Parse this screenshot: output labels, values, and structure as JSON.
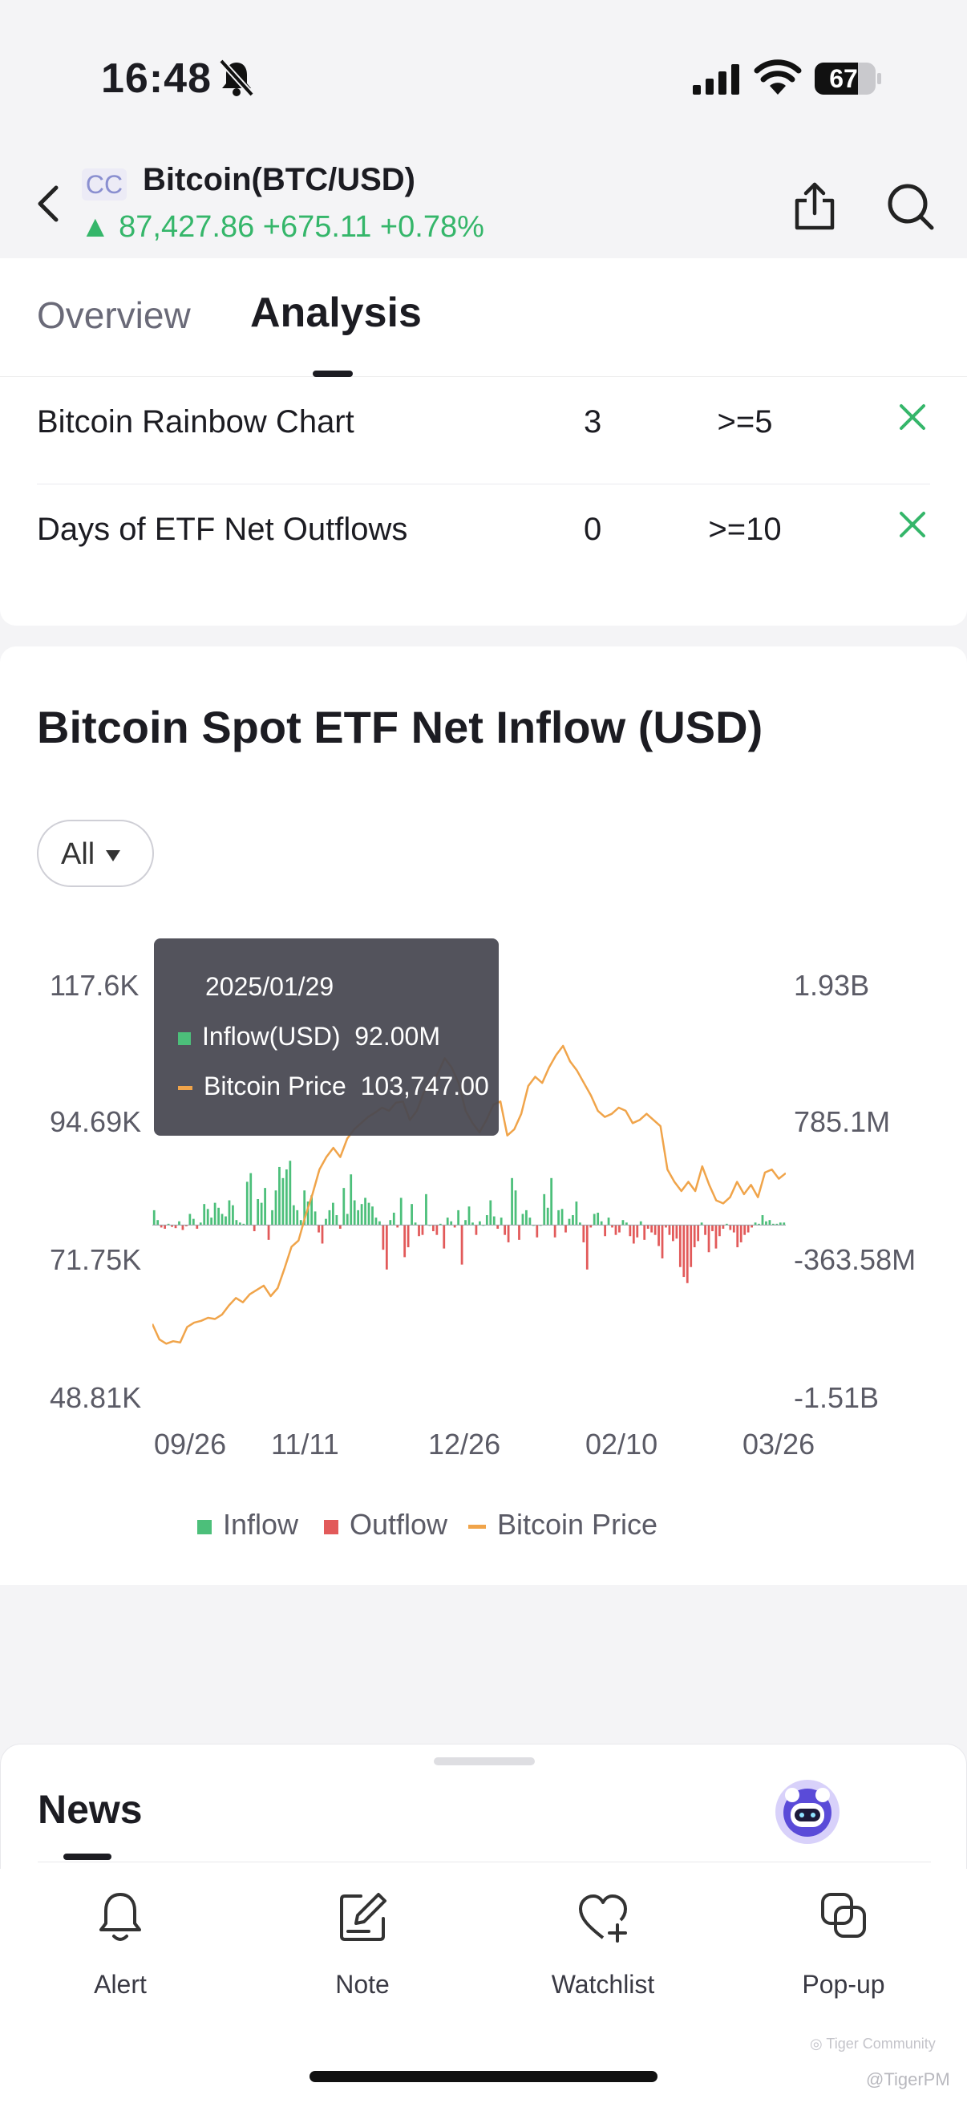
{
  "status_bar": {
    "time": "16:48",
    "battery": "67"
  },
  "header": {
    "badge": "CC",
    "title": "Bitcoin(BTC/USD)",
    "price_line": "▲ 87,427.86 +675.11 +0.78%",
    "colors": {
      "up": "#35b66a"
    }
  },
  "tabs": [
    {
      "label": "Overview"
    },
    {
      "label": "Analysis",
      "active": true
    }
  ],
  "indicators": [
    {
      "label": "Bitcoin Rainbow Chart",
      "value": "3",
      "threshold": ">=5",
      "status_icon": "close-icon"
    },
    {
      "label": "Days of ETF Net Outflows",
      "value": "0",
      "threshold": ">=10",
      "status_icon": "close-icon"
    }
  ],
  "chart_section": {
    "title": "Bitcoin Spot ETF Net Inflow (USD)",
    "range": "All"
  },
  "chart_data": {
    "type": "bar",
    "title": "Bitcoin Spot ETF Net Inflow (USD)",
    "x_tick_labels": [
      "09/26",
      "11/11",
      "12/26",
      "02/10",
      "03/26"
    ],
    "y_left_tick_labels": [
      "117.6K",
      "94.69K",
      "71.75K",
      "48.81K"
    ],
    "y_right_tick_labels": [
      "1.93B",
      "785.1M",
      "-363.58M",
      "-1.51B"
    ],
    "y_left_range": [
      48810,
      117600
    ],
    "y_right_range": [
      -1510000000,
      1930000000
    ],
    "legend": [
      "Inflow",
      "Outflow",
      "Bitcoin Price"
    ],
    "legend_position": "bottom",
    "colors": {
      "inflow": "#4cbf7a",
      "outflow": "#e25a5a",
      "price": "#f0a44a"
    },
    "flows_musd": [
      120,
      40,
      -20,
      -30,
      10,
      -15,
      -25,
      30,
      -40,
      -10,
      90,
      50,
      -30,
      20,
      170,
      130,
      60,
      180,
      140,
      90,
      70,
      200,
      160,
      40,
      20,
      10,
      350,
      420,
      -50,
      210,
      180,
      300,
      -120,
      120,
      280,
      470,
      380,
      450,
      520,
      160,
      120,
      40,
      280,
      190,
      240,
      110,
      -60,
      -150,
      50,
      120,
      180,
      80,
      -30,
      300,
      90,
      410,
      200,
      120,
      170,
      220,
      180,
      150,
      60,
      30,
      -200,
      -360,
      40,
      100,
      -20,
      220,
      -260,
      -180,
      170,
      20,
      -90,
      -80,
      250,
      0,
      -50,
      -80,
      10,
      -190,
      60,
      30,
      -20,
      120,
      -320,
      40,
      150,
      20,
      -80,
      30,
      0,
      80,
      200,
      70,
      -30,
      60,
      -80,
      -140,
      380,
      280,
      -120,
      90,
      120,
      60,
      0,
      -100,
      0,
      250,
      140,
      380,
      -100,
      120,
      130,
      -60,
      50,
      80,
      190,
      20,
      -140,
      -360,
      -20,
      90,
      100,
      30,
      -90,
      60,
      -20,
      -80,
      -60,
      40,
      20,
      -90,
      -150,
      -100,
      30,
      -120,
      -30,
      -60,
      -80,
      -170,
      -270,
      -20,
      -80,
      -130,
      -110,
      -340,
      -420,
      -470,
      -340,
      -180,
      -130,
      20,
      -80,
      -220,
      -50,
      -190,
      -90,
      -30,
      10,
      -40,
      -60,
      -180,
      -140,
      -80,
      -60,
      -20,
      20,
      10,
      80,
      30,
      40,
      10,
      10,
      20,
      20
    ],
    "price_usd": [
      63000,
      60500,
      59800,
      60200,
      60000,
      62500,
      63200,
      63500,
      64000,
      63800,
      64500,
      66000,
      67200,
      66500,
      67800,
      68500,
      69200,
      67500,
      68800,
      72000,
      75500,
      76500,
      80500,
      84000,
      88000,
      90000,
      91500,
      90000,
      93000,
      94500,
      95500,
      96500,
      97200,
      98000,
      97500,
      98800,
      99000,
      96000,
      97500,
      100500,
      101500,
      103500,
      106000,
      104500,
      102000,
      97500,
      95500,
      94000,
      96000,
      98500,
      99000,
      93500,
      94500,
      97000,
      101500,
      103000,
      102000,
      104500,
      106500,
      108000,
      105500,
      104000,
      102000,
      100000,
      97500,
      96500,
      97000,
      98000,
      97500,
      95500,
      96000,
      97000,
      96000,
      95000,
      88000,
      86000,
      84500,
      86000,
      84500,
      88500,
      85500,
      83000,
      82500,
      83500,
      86000,
      84000,
      85500,
      83500,
      87500,
      88000,
      86500,
      87400
    ],
    "tooltip": {
      "date": "2025/01/29",
      "inflow_label": "Inflow(USD)",
      "inflow_value": "92.00M",
      "price_label": "Bitcoin Price",
      "price_value": "103,747.00"
    }
  },
  "news": {
    "title": "News"
  },
  "bottom_nav": [
    {
      "label": "Alert",
      "icon": "bell-icon"
    },
    {
      "label": "Note",
      "icon": "note-icon"
    },
    {
      "label": "Watchlist",
      "icon": "heart-plus-icon"
    },
    {
      "label": "Pop-up",
      "icon": "popup-icon"
    }
  ],
  "watermark": {
    "text": "@TigerPM"
  }
}
